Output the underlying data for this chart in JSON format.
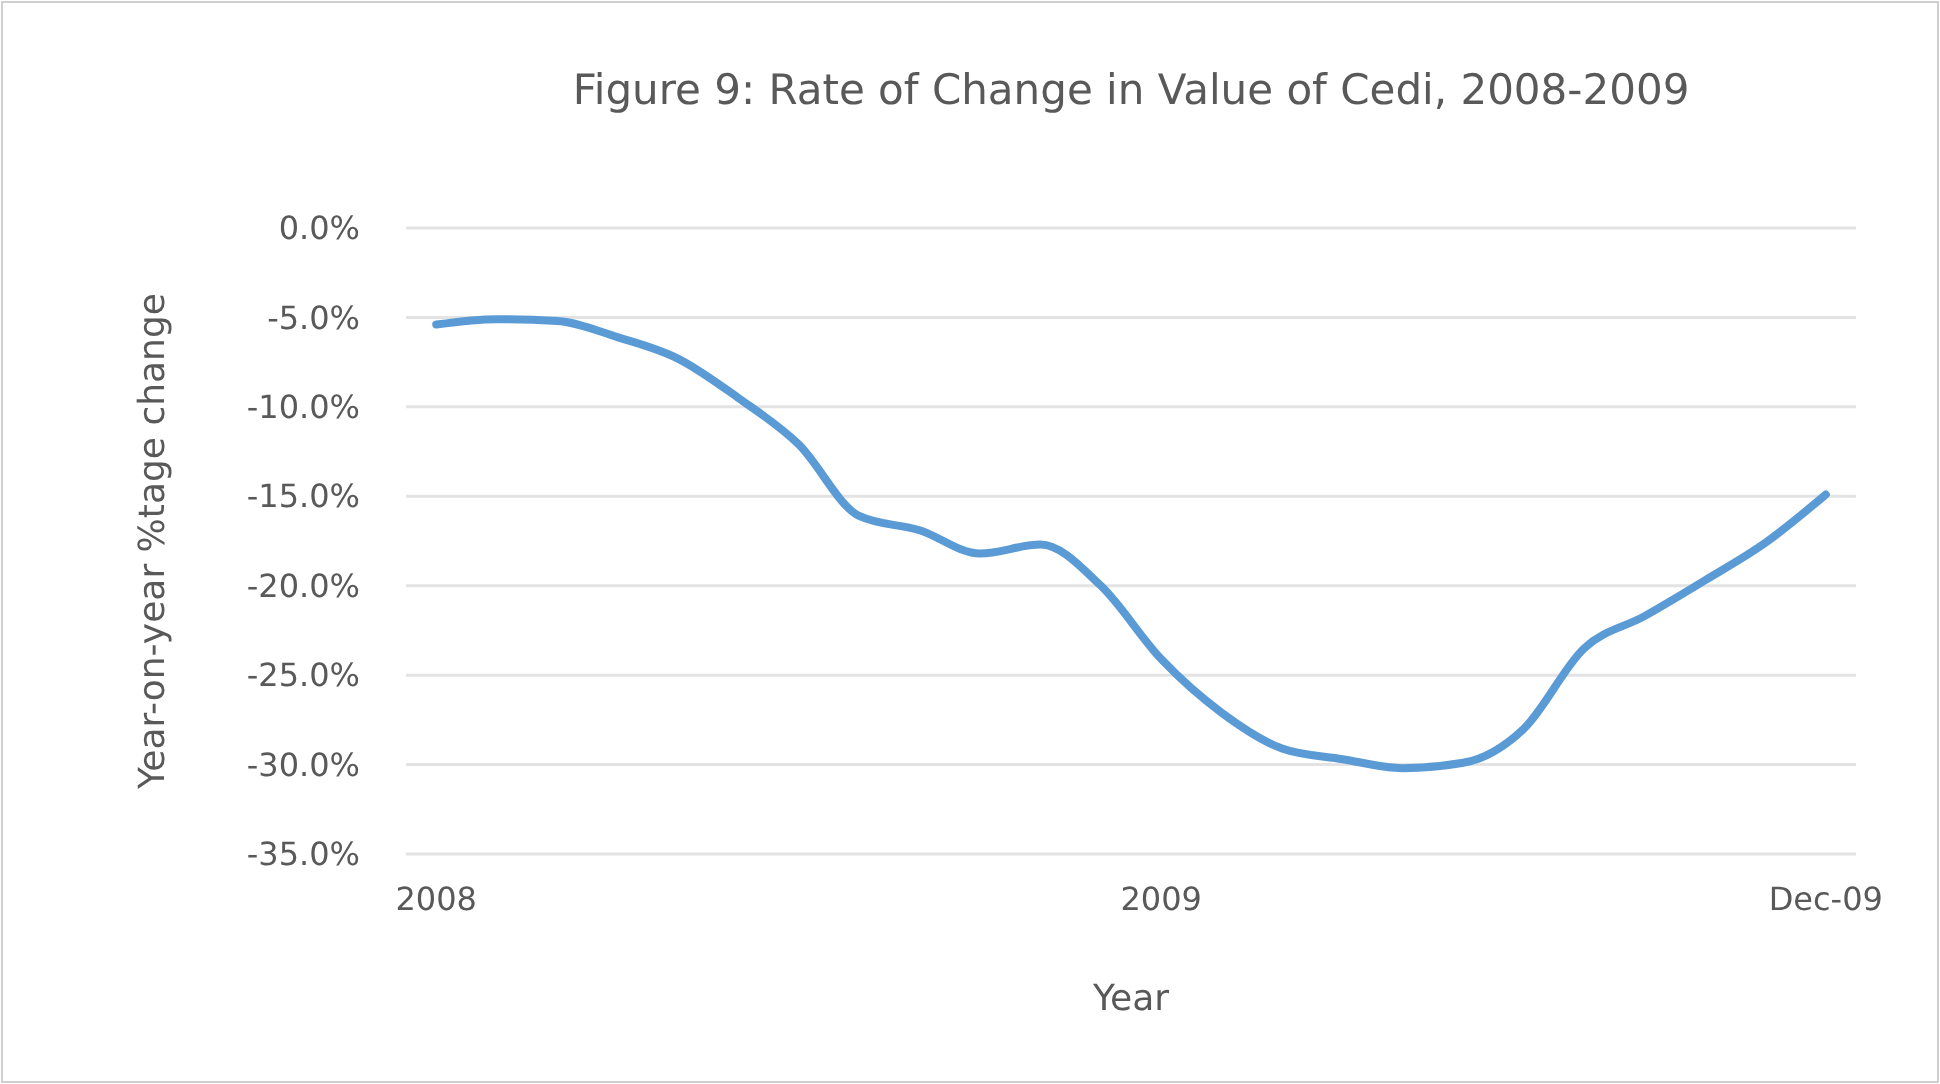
{
  "chart_data": {
    "type": "line",
    "title": "Figure 9: Rate of Change in Value of Cedi, 2008-2009",
    "xlabel": "Year",
    "ylabel": "Year-on-year %tage change",
    "categories": [
      "2008",
      null,
      null,
      null,
      null,
      null,
      null,
      null,
      null,
      null,
      null,
      null,
      "2009",
      null,
      null,
      null,
      null,
      null,
      null,
      null,
      null,
      null,
      null,
      "Dec-09"
    ],
    "series": [
      {
        "color": "#5b9bd5",
        "values": [
          -5.4,
          -5.1,
          -5.2,
          -6.1,
          -7.3,
          -9.5,
          -12.1,
          -16.1,
          -16.9,
          -18.2,
          -17.7,
          -20.0,
          -24.1,
          -27.1,
          -29.1,
          -29.7,
          -30.2,
          -29.9,
          -28.0,
          -23.5,
          -21.7,
          -19.7,
          -17.6,
          -14.9
        ]
      }
    ],
    "ylim": [
      -35,
      0
    ],
    "yticks": [
      {
        "value": 0,
        "label": "0.0%"
      },
      {
        "value": -5,
        "label": "-5.0%"
      },
      {
        "value": -10,
        "label": "-10.0%"
      },
      {
        "value": -15,
        "label": "-15.0%"
      },
      {
        "value": -20,
        "label": "-20.0%"
      },
      {
        "value": -25,
        "label": "-25.0%"
      },
      {
        "value": -30,
        "label": "-30.0%"
      },
      {
        "value": -35,
        "label": "-35.0%"
      }
    ],
    "grid": "y",
    "marker": "none",
    "line_style": "solid"
  }
}
